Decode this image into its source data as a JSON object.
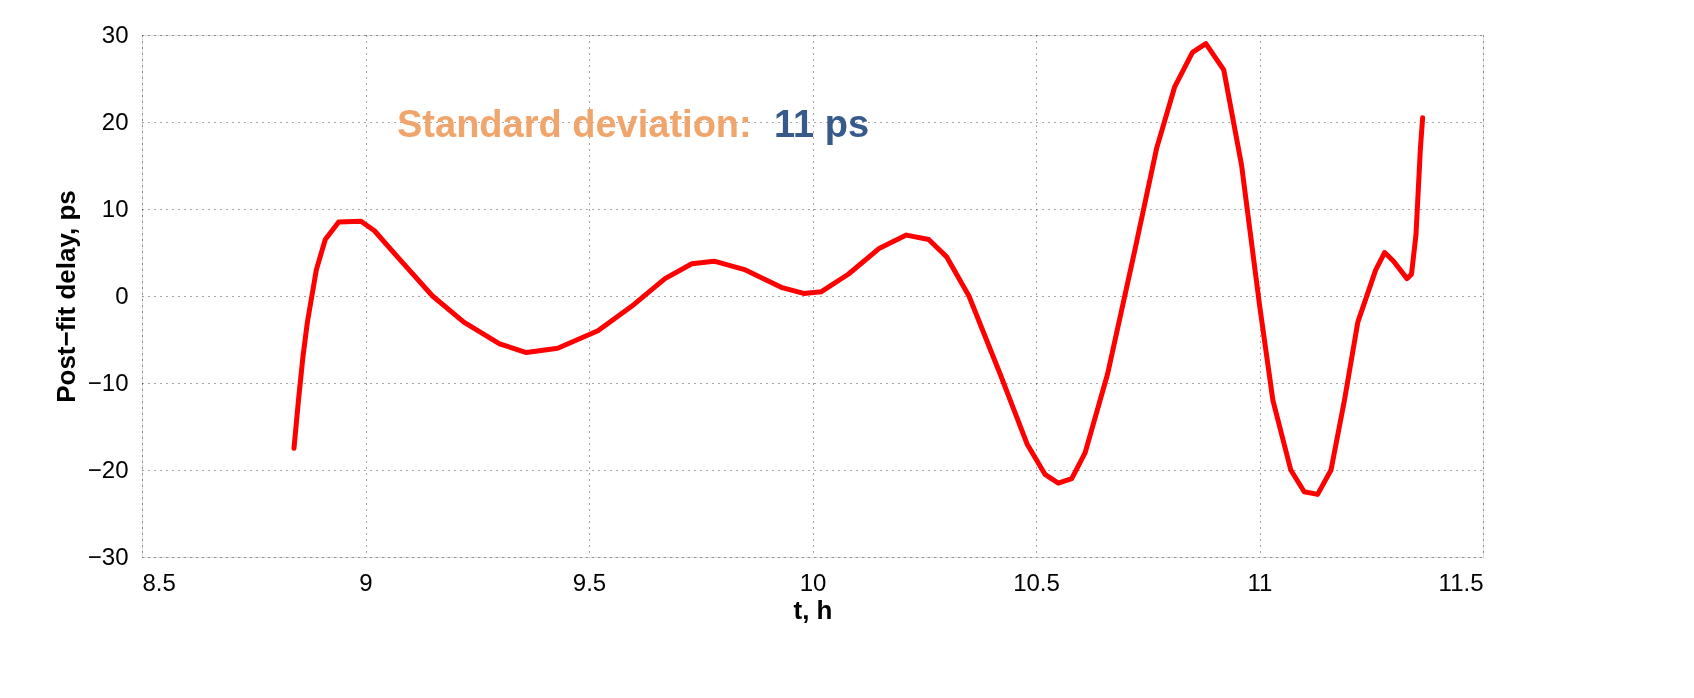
{
  "chart_data": {
    "type": "line",
    "xlabel": "t, h",
    "ylabel": "Post−fit delay, ps",
    "annotations": [
      "Standard deviation:",
      "11 ps"
    ],
    "x": [
      8.84,
      8.85,
      8.86,
      8.87,
      8.89,
      8.91,
      8.94,
      8.99,
      9.02,
      9.08,
      9.15,
      9.22,
      9.3,
      9.36,
      9.43,
      9.52,
      9.6,
      9.67,
      9.73,
      9.78,
      9.85,
      9.93,
      9.98,
      10.02,
      10.08,
      10.15,
      10.21,
      10.26,
      10.3,
      10.35,
      10.42,
      10.48,
      10.52,
      10.55,
      10.58,
      10.61,
      10.66,
      10.72,
      10.77,
      10.81,
      10.85,
      10.88,
      10.92,
      10.96,
      11.0,
      11.03,
      11.07,
      11.1,
      11.13,
      11.16,
      11.19,
      11.22,
      11.26,
      11.28,
      11.3,
      11.33,
      11.34,
      11.35,
      11.355,
      11.36,
      11.365
    ],
    "series": [
      {
        "color": "#ff0000",
        "values": [
          -17.5,
          -12,
          -7,
          -3,
          3,
          6.5,
          8.5,
          8.6,
          7.5,
          4,
          0,
          -3,
          -5.5,
          -6.5,
          -6,
          -4,
          -1,
          2,
          3.7,
          4,
          3,
          1,
          0.3,
          0.5,
          2.5,
          5.5,
          7,
          6.5,
          4.5,
          0,
          -9,
          -17,
          -20.5,
          -21.5,
          -21,
          -18,
          -9,
          5,
          17,
          24,
          28,
          29,
          26,
          15,
          -1,
          -12,
          -20,
          -22.5,
          -22.8,
          -20,
          -12,
          -3,
          3,
          5,
          4,
          2,
          2.5,
          7,
          12,
          17,
          20.5
        ]
      }
    ],
    "xlim": [
      8.5,
      11.5
    ],
    "xticks": [
      8.5,
      9,
      9.5,
      10,
      10.5,
      11,
      11.5
    ],
    "ylim": [
      -30,
      30
    ],
    "yticks": [
      {
        "value": -30,
        "label": "−30"
      },
      {
        "value": -20,
        "label": "−20"
      },
      {
        "value": -10,
        "label": "−10"
      },
      0,
      10,
      20,
      30
    ],
    "grid": true,
    "legend": false,
    "marker": "none",
    "line_style": "solid"
  }
}
